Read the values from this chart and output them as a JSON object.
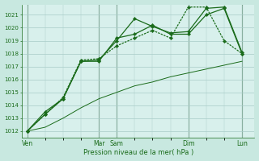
{
  "background_color": "#c8e8e0",
  "plot_bg": "#d8f0ec",
  "grid_color": "#a8ccc8",
  "line_color": "#1a6b1a",
  "xlabel": "Pression niveau de la mer( hPa )",
  "ylim": [
    1011.5,
    1021.8
  ],
  "yticks": [
    1012,
    1013,
    1014,
    1015,
    1016,
    1017,
    1018,
    1019,
    1020,
    1021
  ],
  "xlim": [
    -0.3,
    12.7
  ],
  "day_labels": [
    "Ven",
    "Mar",
    "Sam",
    "Dim",
    "Lun"
  ],
  "day_positions": [
    0,
    4,
    5,
    9,
    12
  ],
  "vline_positions": [
    0,
    4,
    5,
    9,
    12
  ],
  "series1": {
    "x": [
      0,
      1,
      2,
      3,
      4,
      5,
      6,
      7,
      8,
      9,
      10,
      11,
      12
    ],
    "y": [
      1012.0,
      1013.3,
      1014.5,
      1017.4,
      1017.4,
      1019.2,
      1019.5,
      1020.2,
      1019.5,
      1019.5,
      1021.0,
      1021.5,
      1018.0
    ]
  },
  "series2": {
    "x": [
      0,
      1,
      2,
      3,
      4,
      5,
      6,
      7,
      8,
      9,
      10,
      11,
      12
    ],
    "y": [
      1012.0,
      1013.5,
      1014.5,
      1017.4,
      1017.5,
      1019.0,
      1020.7,
      1020.1,
      1019.6,
      1019.7,
      1021.5,
      1021.6,
      1018.1
    ]
  },
  "series3": {
    "x": [
      0,
      1,
      2,
      3,
      4,
      5,
      6,
      7,
      8,
      9,
      10,
      11,
      12
    ],
    "y": [
      1012.0,
      1013.3,
      1014.6,
      1017.5,
      1017.6,
      1018.6,
      1019.2,
      1019.8,
      1019.2,
      1021.6,
      1021.6,
      1019.0,
      1018.0
    ]
  },
  "series4": {
    "x": [
      0,
      1,
      2,
      3,
      4,
      5,
      6,
      7,
      8,
      9,
      10,
      11,
      12
    ],
    "y": [
      1012.0,
      1012.3,
      1013.0,
      1013.8,
      1014.5,
      1015.0,
      1015.5,
      1015.8,
      1016.2,
      1016.5,
      1016.8,
      1017.1,
      1017.4
    ]
  }
}
